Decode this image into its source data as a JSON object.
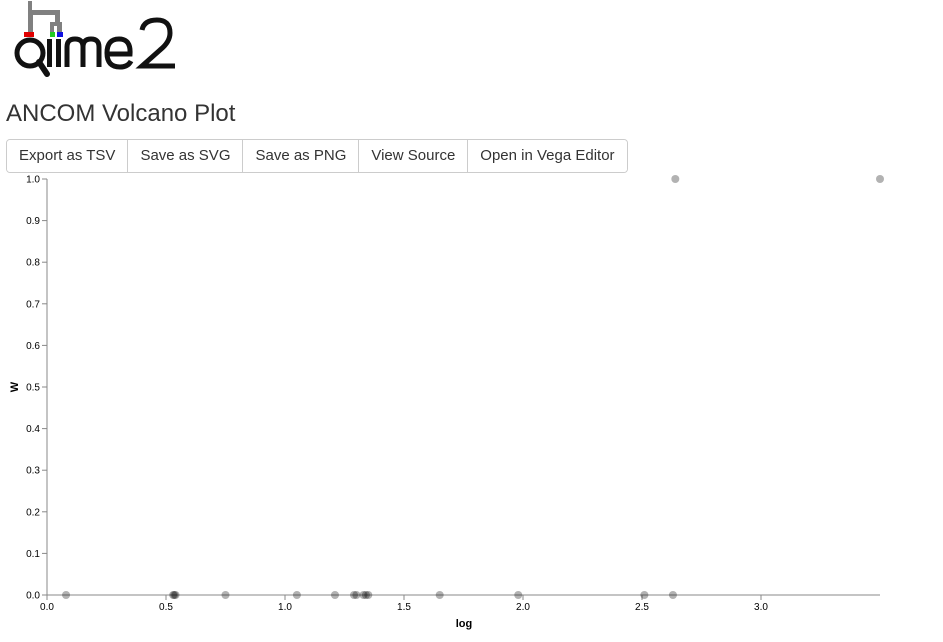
{
  "logo": {
    "text": "qiime2"
  },
  "page_title": "ANCOM Volcano Plot",
  "toolbar": {
    "export_tsv": "Export as TSV",
    "save_svg": "Save as SVG",
    "save_png": "Save as PNG",
    "view_source": "View Source",
    "open_vega": "Open in Vega Editor"
  },
  "chart_data": {
    "type": "scatter",
    "xlabel": "log",
    "ylabel": "W",
    "xlim": [
      0,
      3.5
    ],
    "ylim": [
      0,
      1
    ],
    "x_ticks": [
      "0.0",
      "0.5",
      "1.0",
      "1.5",
      "2.0",
      "2.5",
      "3.0"
    ],
    "y_ticks": [
      "0.0",
      "0.1",
      "0.2",
      "0.3",
      "0.4",
      "0.5",
      "0.6",
      "0.7",
      "0.8",
      "0.9",
      "1.0"
    ],
    "grid": false,
    "point_color": "#000000",
    "points": [
      {
        "x": 0.08,
        "y": 0
      },
      {
        "x": 0.53,
        "y": 0
      },
      {
        "x": 0.535,
        "y": 0
      },
      {
        "x": 0.54,
        "y": 0
      },
      {
        "x": 0.75,
        "y": 0
      },
      {
        "x": 1.05,
        "y": 0
      },
      {
        "x": 1.21,
        "y": 0
      },
      {
        "x": 1.29,
        "y": 0
      },
      {
        "x": 1.3,
        "y": 0
      },
      {
        "x": 1.33,
        "y": 0
      },
      {
        "x": 1.34,
        "y": 0
      },
      {
        "x": 1.35,
        "y": 0
      },
      {
        "x": 1.65,
        "y": 0
      },
      {
        "x": 1.98,
        "y": 0
      },
      {
        "x": 2.51,
        "y": 0
      },
      {
        "x": 2.63,
        "y": 0
      },
      {
        "x": 2.64,
        "y": 1
      },
      {
        "x": 3.5,
        "y": 1
      }
    ]
  }
}
